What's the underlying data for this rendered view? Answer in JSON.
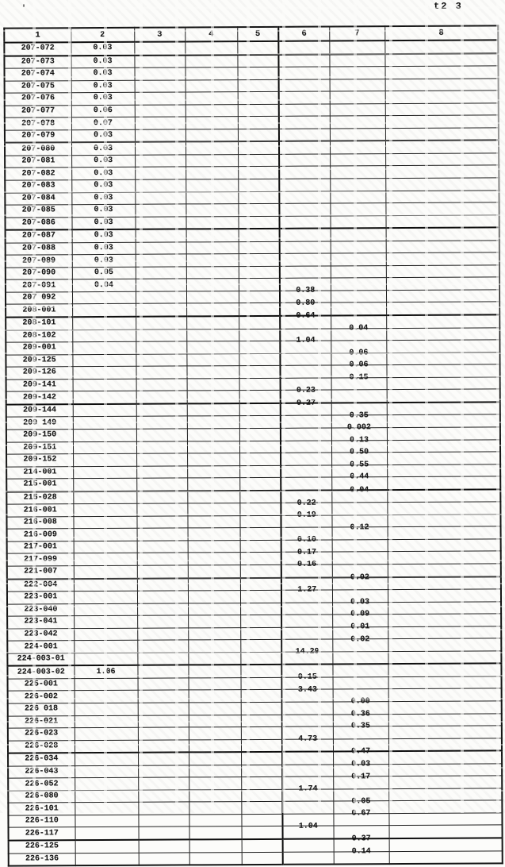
{
  "page": {
    "corner_label": "t2 3",
    "artifact": "'"
  },
  "table": {
    "headers": [
      "1",
      "2",
      "3",
      "4",
      "5",
      "6",
      "7",
      "8"
    ],
    "rows": [
      {
        "code": "207-072",
        "value_col": 2,
        "value": "0.03"
      },
      {
        "code": "207-073",
        "value_col": 2,
        "value": "0.03"
      },
      {
        "code": "207-074",
        "value_col": 2,
        "value": "0.03"
      },
      {
        "code": "207-075",
        "value_col": 2,
        "value": "0.03"
      },
      {
        "code": "207-076",
        "value_col": 2,
        "value": "0.03"
      },
      {
        "code": "207-077",
        "value_col": 2,
        "value": "0.06"
      },
      {
        "code": "207-078",
        "value_col": 2,
        "value": "0.07"
      },
      {
        "code": "207-079",
        "value_col": 2,
        "value": "0.03"
      },
      {
        "code": "207-080",
        "value_col": 2,
        "value": "0.03"
      },
      {
        "code": "207-081",
        "value_col": 2,
        "value": "0.03"
      },
      {
        "code": "207-082",
        "value_col": 2,
        "value": "0.03"
      },
      {
        "code": "207-083",
        "value_col": 2,
        "value": "0.03"
      },
      {
        "code": "207-084",
        "value_col": 2,
        "value": "0.03"
      },
      {
        "code": "207-085",
        "value_col": 2,
        "value": "0.03"
      },
      {
        "code": "207-086",
        "value_col": 2,
        "value": "0.03"
      },
      {
        "code": "207-087",
        "value_col": 2,
        "value": "0.03"
      },
      {
        "code": "207-088",
        "value_col": 2,
        "value": "0.03"
      },
      {
        "code": "207-089",
        "value_col": 2,
        "value": "0.03"
      },
      {
        "code": "207-090",
        "value_col": 2,
        "value": "0.05"
      },
      {
        "code": "207-091",
        "value_col": 2,
        "value": "0.04"
      },
      {
        "code": "207 092",
        "value_col": 6,
        "value": "0.38"
      },
      {
        "code": "208-001",
        "value_col": 6,
        "value": "0.80"
      },
      {
        "code": "208-101",
        "value_col": 6,
        "value": "0.64"
      },
      {
        "code": "208-102",
        "value_col": 7,
        "value": "0.04"
      },
      {
        "code": "209-001",
        "value_col": 6,
        "value": "1.04"
      },
      {
        "code": "209-125",
        "value_col": 7,
        "value": "0.06"
      },
      {
        "code": "209-126",
        "value_col": 7,
        "value": "0.06"
      },
      {
        "code": "209-141",
        "value_col": 7,
        "value": "0.15"
      },
      {
        "code": "209-142",
        "value_col": 6,
        "value": "0.23"
      },
      {
        "code": "209-144",
        "value_col": 6,
        "value": "0.27"
      },
      {
        "code": "209 149",
        "value_col": 7,
        "value": "0.35"
      },
      {
        "code": "209-150",
        "value_col": 7,
        "value": "0.002"
      },
      {
        "code": "209-151",
        "value_col": 7,
        "value": "0.13"
      },
      {
        "code": "209-152",
        "value_col": 7,
        "value": "0.50"
      },
      {
        "code": "214-001",
        "value_col": 7,
        "value": "0.55"
      },
      {
        "code": "215-001",
        "value_col": 7,
        "value": "0.44"
      },
      {
        "code": "215-028",
        "value_col": 7,
        "value": "0.04"
      },
      {
        "code": "216-001",
        "value_col": 6,
        "value": "0.22"
      },
      {
        "code": "216-008",
        "value_col": 6,
        "value": "0.19"
      },
      {
        "code": "216-009",
        "value_col": 7,
        "value": "0.12"
      },
      {
        "code": "217-001",
        "value_col": 6,
        "value": "0.10"
      },
      {
        "code": "217-099",
        "value_col": 6,
        "value": "0.17"
      },
      {
        "code": "221-007",
        "value_col": 6,
        "value": "0.16"
      },
      {
        "code": "222-004",
        "value_col": 7,
        "value": "0.02"
      },
      {
        "code": "223-001",
        "value_col": 6,
        "value": "1.27"
      },
      {
        "code": "223-040",
        "value_col": 7,
        "value": "0.03"
      },
      {
        "code": "223-041",
        "value_col": 7,
        "value": "0.09"
      },
      {
        "code": "223-042",
        "value_col": 7,
        "value": "0.01"
      },
      {
        "code": "224-001",
        "value_col": 7,
        "value": "0.02"
      },
      {
        "code": "224-003-01",
        "value_col": 6,
        "value": "14.29"
      },
      {
        "code": "224-003-02",
        "value_col": 2,
        "value": "1.06"
      },
      {
        "code": "225-001",
        "value_col": 6,
        "value": "0.15"
      },
      {
        "code": "226-002",
        "value_col": 6,
        "value": "3.43"
      },
      {
        "code": "226 018",
        "value_col": 7,
        "value": "0.00"
      },
      {
        "code": "226-021",
        "value_col": 7,
        "value": "0.36"
      },
      {
        "code": "226-023",
        "value_col": 7,
        "value": "0.35"
      },
      {
        "code": "226-028",
        "value_col": 6,
        "value": "4.73"
      },
      {
        "code": "226-034",
        "value_col": 7,
        "value": "0.47"
      },
      {
        "code": "226-043",
        "value_col": 7,
        "value": "0.03"
      },
      {
        "code": "226-052",
        "value_col": 7,
        "value": "0.17"
      },
      {
        "code": "226-080",
        "value_col": 6,
        "value": "1.74"
      },
      {
        "code": "226-101",
        "value_col": 7,
        "value": "0.05"
      },
      {
        "code": "226-110",
        "value_col": 7,
        "value": "0.67"
      },
      {
        "code": "226-117",
        "value_col": 6,
        "value": "1.04"
      },
      {
        "code": "226-125",
        "value_col": 7,
        "value": "0.37"
      },
      {
        "code": "226-136",
        "value_col": 7,
        "value": "0.14"
      }
    ]
  }
}
